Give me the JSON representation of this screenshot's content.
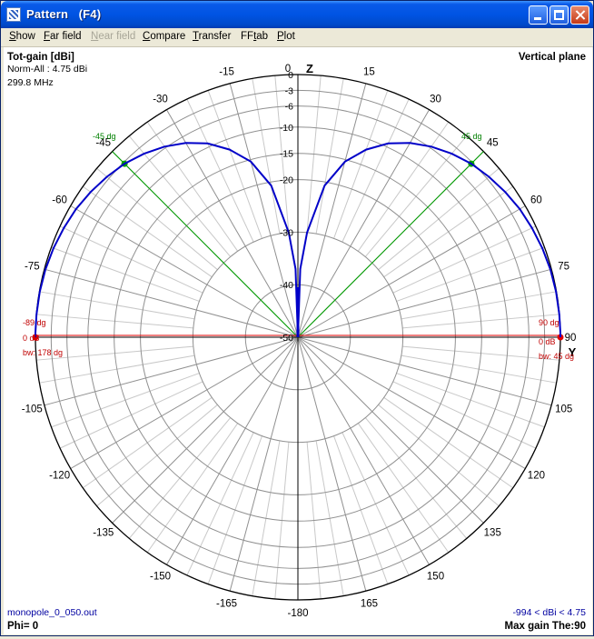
{
  "window": {
    "title": "Pattern   (F4)"
  },
  "menu": [
    {
      "label": "Show",
      "enabled": true
    },
    {
      "label": "Far field",
      "enabled": true
    },
    {
      "label": "Near field",
      "enabled": false
    },
    {
      "label": "Compare",
      "enabled": true
    },
    {
      "label": "Transfer",
      "enabled": true
    },
    {
      "label": "FFtab",
      "enabled": true
    },
    {
      "label": "Plot",
      "enabled": true
    }
  ],
  "info": {
    "top_left_title": "Tot-gain [dBi]",
    "norm": "Norm-All : 4.75 dBi",
    "frequency": "299.8 MHz",
    "plane": "Vertical plane",
    "filename": "monopole_0_050.out",
    "phi": "Phi= 0",
    "range": "-994 < dBi < 4.75",
    "max_gain": "Max gain The:90"
  },
  "colors": {
    "pattern": "#0000c8",
    "markers_green": "#008000",
    "markers_red": "#e00000",
    "grid": "#a0a0a0"
  },
  "chart_data": {
    "type": "polar",
    "plane": "Vertical plane",
    "quantity": "Tot-gain [dBi]",
    "axis_labels": {
      "vertical": "Z",
      "horizontal": "Y"
    },
    "angle_ticks": [
      "0",
      "15",
      "30",
      "45",
      "60",
      "75",
      "90",
      "105",
      "120",
      "135",
      "150",
      "165",
      "-180",
      "-165",
      "-150",
      "-135",
      "-120",
      "-105",
      "-75",
      "-60",
      "-45",
      "-30",
      "-15"
    ],
    "radial_ticks": [
      "0",
      "-3",
      "-6",
      "-10",
      "-15",
      "-20",
      "-30",
      "-40",
      "-50"
    ],
    "radial_values_db": [
      0,
      -3,
      -6,
      -10,
      -15,
      -20,
      -30,
      -40,
      -50
    ],
    "pattern": {
      "name": "Tot-gain",
      "theta_deg": [
        0,
        2,
        5,
        10,
        15,
        20,
        25,
        30,
        35,
        40,
        45,
        50,
        55,
        60,
        65,
        70,
        75,
        80,
        85,
        89,
        90
      ],
      "gain_db_norm": [
        -50,
        -37,
        -30,
        -20.7,
        -15.4,
        -12,
        -9.3,
        -7.3,
        -5.7,
        -4.4,
        -3.3,
        -2.5,
        -1.8,
        -1.2,
        -0.8,
        -0.45,
        -0.2,
        -0.08,
        -0.02,
        0,
        0
      ]
    },
    "markers": {
      "right": {
        "angle": "45 dg",
        "max": "90 dg",
        "level": "0 dB",
        "bw": "bw: 45 dg"
      },
      "left": {
        "angle": "-45 dg",
        "max": "-89 dg",
        "level": "0 dB",
        "bw": "bw: 178 dg"
      }
    }
  }
}
